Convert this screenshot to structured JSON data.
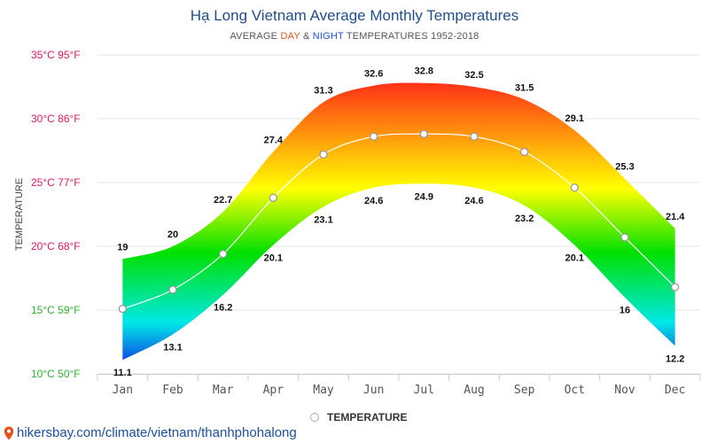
{
  "header": {
    "title": "Hạ Long Vietnam Average Monthly Temperatures",
    "subtitle_prefix": "AVERAGE ",
    "subtitle_day": "DAY",
    "subtitle_amp": " & ",
    "subtitle_night": "NIGHT",
    "subtitle_suffix": " TEMPERATURES 1952-2018"
  },
  "legend": {
    "label": "TEMPERATURE"
  },
  "source": {
    "url_text": "hikersbay.com/climate/vietnam/thanhphohalong",
    "icon": "map-pin-icon"
  },
  "colors": {
    "title": "#1f4e8a",
    "grad_hot": "#ff1a1a",
    "grad_mid": "#ffff00",
    "grad_warm": "#00e000",
    "grad_cool": "#00e8e8",
    "grad_cold": "#1030e0"
  },
  "chart_data": {
    "type": "area",
    "title": "Hạ Long Vietnam Average Monthly Temperatures",
    "ylabel": "TEMPERATURE",
    "categories": [
      "Jan",
      "Feb",
      "Mar",
      "Apr",
      "May",
      "Jun",
      "Jul",
      "Aug",
      "Sep",
      "Oct",
      "Nov",
      "Dec"
    ],
    "series": [
      {
        "name": "DAY",
        "values": [
          19,
          20,
          22.7,
          27.4,
          31.3,
          32.6,
          32.8,
          32.5,
          31.5,
          29.1,
          25.3,
          21.4
        ]
      },
      {
        "name": "NIGHT",
        "values": [
          11.1,
          13.1,
          16.2,
          20.1,
          23.1,
          24.6,
          24.9,
          24.6,
          23.2,
          20.1,
          16,
          12.2
        ]
      },
      {
        "name": "TEMPERATURE",
        "values": [
          15.1,
          16.6,
          19.4,
          23.8,
          27.2,
          28.6,
          28.8,
          28.6,
          27.4,
          24.6,
          20.7,
          16.8
        ]
      }
    ],
    "y_ticks": [
      {
        "value": 35,
        "label": "35°C 95°F"
      },
      {
        "value": 30,
        "label": "30°C 86°F"
      },
      {
        "value": 25,
        "label": "25°C 77°F"
      },
      {
        "value": 20,
        "label": "20°C 68°F"
      },
      {
        "value": 15,
        "label": "15°C 59°F"
      },
      {
        "value": 10,
        "label": "10°C 50°F"
      }
    ],
    "ylim": [
      10,
      35
    ],
    "y_tick_colors": [
      "#e0195a",
      "#e0195a",
      "#e0195a",
      "#e0195a",
      "#2cb52c",
      "#2cb52c"
    ],
    "grid": true,
    "legend_position": "bottom-center"
  }
}
